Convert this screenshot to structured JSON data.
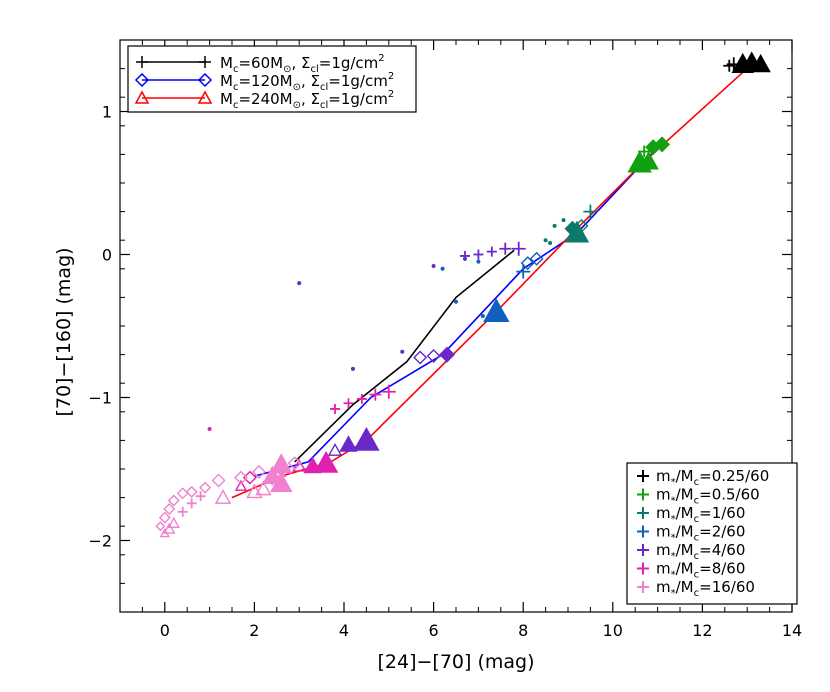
{
  "chart_data": {
    "type": "line",
    "title": "",
    "xlabel": "[24]−[70] (mag)",
    "ylabel": "[70]−[160] (mag)",
    "xlim": [
      -1,
      14
    ],
    "ylim": [
      -2.5,
      1.5
    ],
    "xticks": [
      0,
      2,
      4,
      6,
      8,
      10,
      12,
      14
    ],
    "yticks": [
      -2,
      -1,
      0,
      1
    ],
    "xtick_labels": [
      "0",
      "2",
      "4",
      "6",
      "8",
      "10",
      "12",
      "14"
    ],
    "ytick_labels": [
      "−2",
      "−1",
      "0",
      "1"
    ],
    "grid": false,
    "legend_tracks": {
      "placement": "top-left",
      "entries": [
        {
          "label": "M",
          "sub": "c",
          "rest": "=60M",
          "sun": "⊙",
          "tail": ", Σ",
          "sub2": "cl",
          "tail2": "=1g/cm",
          "sup": "2"
        },
        {
          "label": "M",
          "sub": "c",
          "rest": "=120M",
          "sun": "⊙",
          "tail": ", Σ",
          "sub2": "cl",
          "tail2": "=1g/cm",
          "sup": "2"
        },
        {
          "label": "M",
          "sub": "c",
          "rest": "=240M",
          "sun": "⊙",
          "tail": ", Σ",
          "sub2": "cl",
          "tail2": "=1g/cm",
          "sup": "2"
        }
      ]
    },
    "legend_masses": {
      "placement": "bottom-right",
      "entries": [
        {
          "pre": "m",
          "star": "*",
          "mid": "/M",
          "sub": "c",
          "value": "=0.25/60",
          "color": "#000000"
        },
        {
          "pre": "m",
          "star": "*",
          "mid": "/M",
          "sub": "c",
          "value": "=0.5/60",
          "color": "#11a011"
        },
        {
          "pre": "m",
          "star": "*",
          "mid": "/M",
          "sub": "c",
          "value": "=1/60",
          "color": "#0b7a6a"
        },
        {
          "pre": "m",
          "star": "*",
          "mid": "/M",
          "sub": "c",
          "value": "=2/60",
          "color": "#1060c0"
        },
        {
          "pre": "m",
          "star": "*",
          "mid": "/M",
          "sub": "c",
          "value": "=4/60",
          "color": "#6a28c8"
        },
        {
          "pre": "m",
          "star": "*",
          "mid": "/M",
          "sub": "c",
          "value": "=8/60",
          "color": "#e020b0"
        },
        {
          "pre": "m",
          "star": "*",
          "mid": "/M",
          "sub": "c",
          "value": "=16/60",
          "color": "#f080d0"
        }
      ]
    },
    "series": [
      {
        "name": "M_c=60M⊙, Σ_cl=1g/cm2",
        "color": "#000000",
        "marker": "plus",
        "x": [
          2.9,
          4.2,
          5.4,
          6.5,
          7.8
        ],
        "y": [
          -1.45,
          -1.05,
          -0.75,
          -0.3,
          0.03
        ]
      },
      {
        "name": "M_c=120M⊙, Σ_cl=1g/cm2",
        "color": "#0000ff",
        "marker": "diamond",
        "x": [
          2.0,
          3.2,
          4.6,
          6.2,
          8.0,
          9.2,
          11.0
        ],
        "y": [
          -1.55,
          -1.45,
          -1.0,
          -0.7,
          -0.1,
          0.15,
          0.75
        ]
      },
      {
        "name": "M_c=240M⊙, Σ_cl=1g/cm2",
        "color": "#ff0000",
        "marker": "triangle",
        "x": [
          1.5,
          2.6,
          3.7,
          4.5,
          7.4,
          9.1,
          10.7,
          13.1
        ],
        "y": [
          -1.7,
          -1.55,
          -1.45,
          -1.3,
          -0.4,
          0.15,
          0.65,
          1.33
        ]
      }
    ],
    "points": [
      {
        "x": 12.9,
        "y": 1.33,
        "m": "triangle",
        "c": "#000000",
        "s": 10
      },
      {
        "x": 13.1,
        "y": 1.34,
        "m": "triangle",
        "c": "#000000",
        "s": 10
      },
      {
        "x": 13.3,
        "y": 1.33,
        "m": "triangle",
        "c": "#000000",
        "s": 9
      },
      {
        "x": 12.7,
        "y": 1.33,
        "m": "plus",
        "c": "#000000",
        "s": 7
      },
      {
        "x": 12.6,
        "y": 1.32,
        "m": "plus",
        "c": "#000000",
        "s": 6
      },
      {
        "x": 10.9,
        "y": 0.75,
        "m": "diamond",
        "c": "#11a011",
        "s": 7
      },
      {
        "x": 11.1,
        "y": 0.77,
        "m": "diamond",
        "c": "#11a011",
        "s": 7
      },
      {
        "x": 10.7,
        "y": 0.72,
        "m": "plus",
        "c": "#11a011",
        "s": 6
      },
      {
        "x": 10.6,
        "y": 0.64,
        "m": "triangle",
        "c": "#11a011",
        "s": 11
      },
      {
        "x": 10.8,
        "y": 0.65,
        "m": "triangle",
        "c": "#11a011",
        "s": 9
      },
      {
        "x": 9.5,
        "y": 0.3,
        "m": "plus",
        "c": "#0b7a6a",
        "s": 7
      },
      {
        "x": 9.1,
        "y": 0.18,
        "m": "diamond",
        "c": "#0b7a6a",
        "s": 7
      },
      {
        "x": 9.3,
        "y": 0.2,
        "m": "diamond",
        "c": "#0b7a6a",
        "s": 6
      },
      {
        "x": 9.2,
        "y": 0.15,
        "m": "triangle",
        "c": "#0b7a6a",
        "s": 11
      },
      {
        "x": 8.9,
        "y": 0.24,
        "m": "dot",
        "c": "#0b7a6a",
        "s": 2
      },
      {
        "x": 8.7,
        "y": 0.2,
        "m": "dot",
        "c": "#0b7a6a",
        "s": 2
      },
      {
        "x": 8.6,
        "y": 0.08,
        "m": "dot",
        "c": "#0b7a6a",
        "s": 2
      },
      {
        "x": 8.5,
        "y": 0.1,
        "m": "dot",
        "c": "#0b7a6a",
        "s": 2
      },
      {
        "x": 8.3,
        "y": -0.03,
        "m": "diamond",
        "c": "#1060c0",
        "s": 6
      },
      {
        "x": 8.1,
        "y": -0.06,
        "m": "diamond",
        "c": "#1060c0",
        "s": 6
      },
      {
        "x": 8.0,
        "y": -0.12,
        "m": "plus",
        "c": "#1060c0",
        "s": 7
      },
      {
        "x": 7.4,
        "y": -0.4,
        "m": "triangle",
        "c": "#1060c0",
        "s": 12
      },
      {
        "x": 7.1,
        "y": -0.43,
        "m": "dot",
        "c": "#1060c0",
        "s": 2
      },
      {
        "x": 6.5,
        "y": -0.33,
        "m": "dot",
        "c": "#1060c0",
        "s": 2
      },
      {
        "x": 6.2,
        "y": -0.1,
        "m": "dot",
        "c": "#1060c0",
        "s": 2
      },
      {
        "x": 6.7,
        "y": -0.03,
        "m": "dot",
        "c": "#1060c0",
        "s": 2
      },
      {
        "x": 7.0,
        "y": -0.05,
        "m": "dot",
        "c": "#1060c0",
        "s": 2
      },
      {
        "x": 7.9,
        "y": 0.04,
        "m": "plus",
        "c": "#6a28c8",
        "s": 7
      },
      {
        "x": 7.6,
        "y": 0.04,
        "m": "plus",
        "c": "#6a28c8",
        "s": 6
      },
      {
        "x": 7.3,
        "y": 0.02,
        "m": "plus",
        "c": "#6a28c8",
        "s": 5
      },
      {
        "x": 7.0,
        "y": 0.0,
        "m": "plus",
        "c": "#6a28c8",
        "s": 5
      },
      {
        "x": 6.7,
        "y": -0.01,
        "m": "plus",
        "c": "#6a28c8",
        "s": 5
      },
      {
        "x": 6.3,
        "y": -0.7,
        "m": "diamond",
        "c": "#6a28c8",
        "s": 7
      },
      {
        "x": 6.0,
        "y": -0.71,
        "m": "diamond",
        "c": "#6a28c8",
        "s": 6
      },
      {
        "x": 5.7,
        "y": -0.72,
        "m": "diamond",
        "c": "#6a28c8",
        "s": 6
      },
      {
        "x": 4.5,
        "y": -1.3,
        "m": "triangle",
        "c": "#6a28c8",
        "s": 12
      },
      {
        "x": 4.1,
        "y": -1.33,
        "m": "triangle",
        "c": "#6a28c8",
        "s": 8
      },
      {
        "x": 3.8,
        "y": -1.37,
        "m": "triangle",
        "c": "#6a28c8",
        "s": 6
      },
      {
        "x": 3.0,
        "y": -0.2,
        "m": "dot",
        "c": "#6a28c8",
        "s": 2
      },
      {
        "x": 4.2,
        "y": -0.8,
        "m": "dot",
        "c": "#6a28c8",
        "s": 2
      },
      {
        "x": 5.3,
        "y": -0.68,
        "m": "dot",
        "c": "#6a28c8",
        "s": 2
      },
      {
        "x": 6.0,
        "y": -0.08,
        "m": "dot",
        "c": "#6a28c8",
        "s": 2
      },
      {
        "x": 5.0,
        "y": -0.96,
        "m": "plus",
        "c": "#e020b0",
        "s": 7
      },
      {
        "x": 4.7,
        "y": -0.98,
        "m": "plus",
        "c": "#e020b0",
        "s": 6
      },
      {
        "x": 4.4,
        "y": -1.01,
        "m": "plus",
        "c": "#e020b0",
        "s": 5
      },
      {
        "x": 4.1,
        "y": -1.04,
        "m": "plus",
        "c": "#e020b0",
        "s": 5
      },
      {
        "x": 3.8,
        "y": -1.08,
        "m": "plus",
        "c": "#e020b0",
        "s": 5
      },
      {
        "x": 3.6,
        "y": -1.46,
        "m": "triangle",
        "c": "#e020b0",
        "s": 11
      },
      {
        "x": 3.3,
        "y": -1.48,
        "m": "triangle",
        "c": "#e020b0",
        "s": 8
      },
      {
        "x": 3.0,
        "y": -1.48,
        "m": "triangle",
        "c": "#e020b0",
        "s": 6
      },
      {
        "x": 2.6,
        "y": -1.5,
        "m": "diamond",
        "c": "#e020b0",
        "s": 6
      },
      {
        "x": 1.9,
        "y": -1.56,
        "m": "diamond",
        "c": "#e020b0",
        "s": 6
      },
      {
        "x": 1.0,
        "y": -1.22,
        "m": "dot",
        "c": "#e020b0",
        "s": 2
      },
      {
        "x": 1.7,
        "y": -1.62,
        "m": "triangle",
        "c": "#e020b0",
        "s": 5
      },
      {
        "x": 2.6,
        "y": -1.47,
        "m": "triangle",
        "c": "#f080d0",
        "s": 10
      },
      {
        "x": 2.4,
        "y": -1.55,
        "m": "triangle",
        "c": "#f080d0",
        "s": 9
      },
      {
        "x": 2.6,
        "y": -1.6,
        "m": "triangle",
        "c": "#f080d0",
        "s": 10
      },
      {
        "x": 2.2,
        "y": -1.64,
        "m": "triangle",
        "c": "#f080d0",
        "s": 7
      },
      {
        "x": 2.0,
        "y": -1.66,
        "m": "triangle",
        "c": "#f080d0",
        "s": 7
      },
      {
        "x": 1.3,
        "y": -1.7,
        "m": "triangle",
        "c": "#f080d0",
        "s": 7
      },
      {
        "x": 1.7,
        "y": -1.56,
        "m": "diamond",
        "c": "#f080d0",
        "s": 6
      },
      {
        "x": 2.1,
        "y": -1.52,
        "m": "diamond",
        "c": "#f080d0",
        "s": 6
      },
      {
        "x": 2.9,
        "y": -1.46,
        "m": "diamond",
        "c": "#f080d0",
        "s": 6
      },
      {
        "x": 1.2,
        "y": -1.58,
        "m": "diamond",
        "c": "#f080d0",
        "s": 6
      },
      {
        "x": 0.9,
        "y": -1.63,
        "m": "diamond",
        "c": "#f080d0",
        "s": 5
      },
      {
        "x": 0.6,
        "y": -1.66,
        "m": "diamond",
        "c": "#f080d0",
        "s": 5
      },
      {
        "x": 0.4,
        "y": -1.67,
        "m": "diamond",
        "c": "#f080d0",
        "s": 5
      },
      {
        "x": 0.2,
        "y": -1.72,
        "m": "diamond",
        "c": "#f080d0",
        "s": 5
      },
      {
        "x": 0.1,
        "y": -1.78,
        "m": "diamond",
        "c": "#f080d0",
        "s": 5
      },
      {
        "x": 0.0,
        "y": -1.84,
        "m": "diamond",
        "c": "#f080d0",
        "s": 5
      },
      {
        "x": -0.1,
        "y": -1.9,
        "m": "diamond",
        "c": "#f080d0",
        "s": 4
      },
      {
        "x": 0.2,
        "y": -1.88,
        "m": "triangle",
        "c": "#f080d0",
        "s": 5
      },
      {
        "x": 0.1,
        "y": -1.92,
        "m": "triangle",
        "c": "#f080d0",
        "s": 5
      },
      {
        "x": 0.0,
        "y": -1.95,
        "m": "triangle",
        "c": "#f080d0",
        "s": 4
      },
      {
        "x": 0.4,
        "y": -1.8,
        "m": "plus",
        "c": "#f080d0",
        "s": 5
      },
      {
        "x": 0.6,
        "y": -1.74,
        "m": "plus",
        "c": "#f080d0",
        "s": 5
      },
      {
        "x": 0.8,
        "y": -1.69,
        "m": "plus",
        "c": "#f080d0",
        "s": 5
      },
      {
        "x": 2.6,
        "y": -1.55,
        "m": "plus",
        "c": "#f080d0",
        "s": 5
      },
      {
        "x": 2.4,
        "y": -1.58,
        "m": "plus",
        "c": "#f080d0",
        "s": 5
      }
    ]
  }
}
